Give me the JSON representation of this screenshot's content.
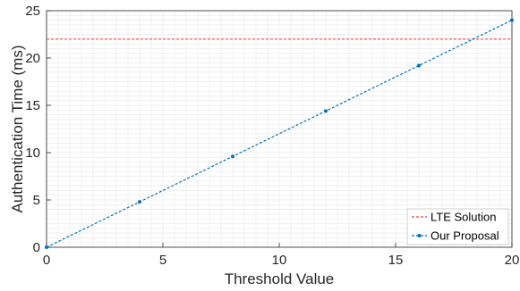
{
  "chart_data": {
    "type": "line",
    "xlabel": "Threshold Value",
    "ylabel": "Authentication Time (ms)",
    "xlim": [
      0,
      20
    ],
    "ylim": [
      0,
      25
    ],
    "xticks": [
      0,
      5,
      10,
      15,
      20
    ],
    "yticks": [
      0,
      5,
      10,
      15,
      20,
      25
    ],
    "grid": true,
    "legend_position": "bottom-right",
    "series": [
      {
        "name": "LTE Solution",
        "color": "#e8483c",
        "style": "dashed",
        "marker": "none",
        "x": [
          0,
          20
        ],
        "y": [
          22,
          22
        ]
      },
      {
        "name": "Our Proposal",
        "color": "#0072bd",
        "style": "dashed",
        "marker": "dot",
        "x": [
          0,
          4,
          8,
          12,
          16,
          20
        ],
        "y": [
          0,
          4.8,
          9.6,
          14.4,
          19.2,
          24
        ]
      }
    ]
  }
}
